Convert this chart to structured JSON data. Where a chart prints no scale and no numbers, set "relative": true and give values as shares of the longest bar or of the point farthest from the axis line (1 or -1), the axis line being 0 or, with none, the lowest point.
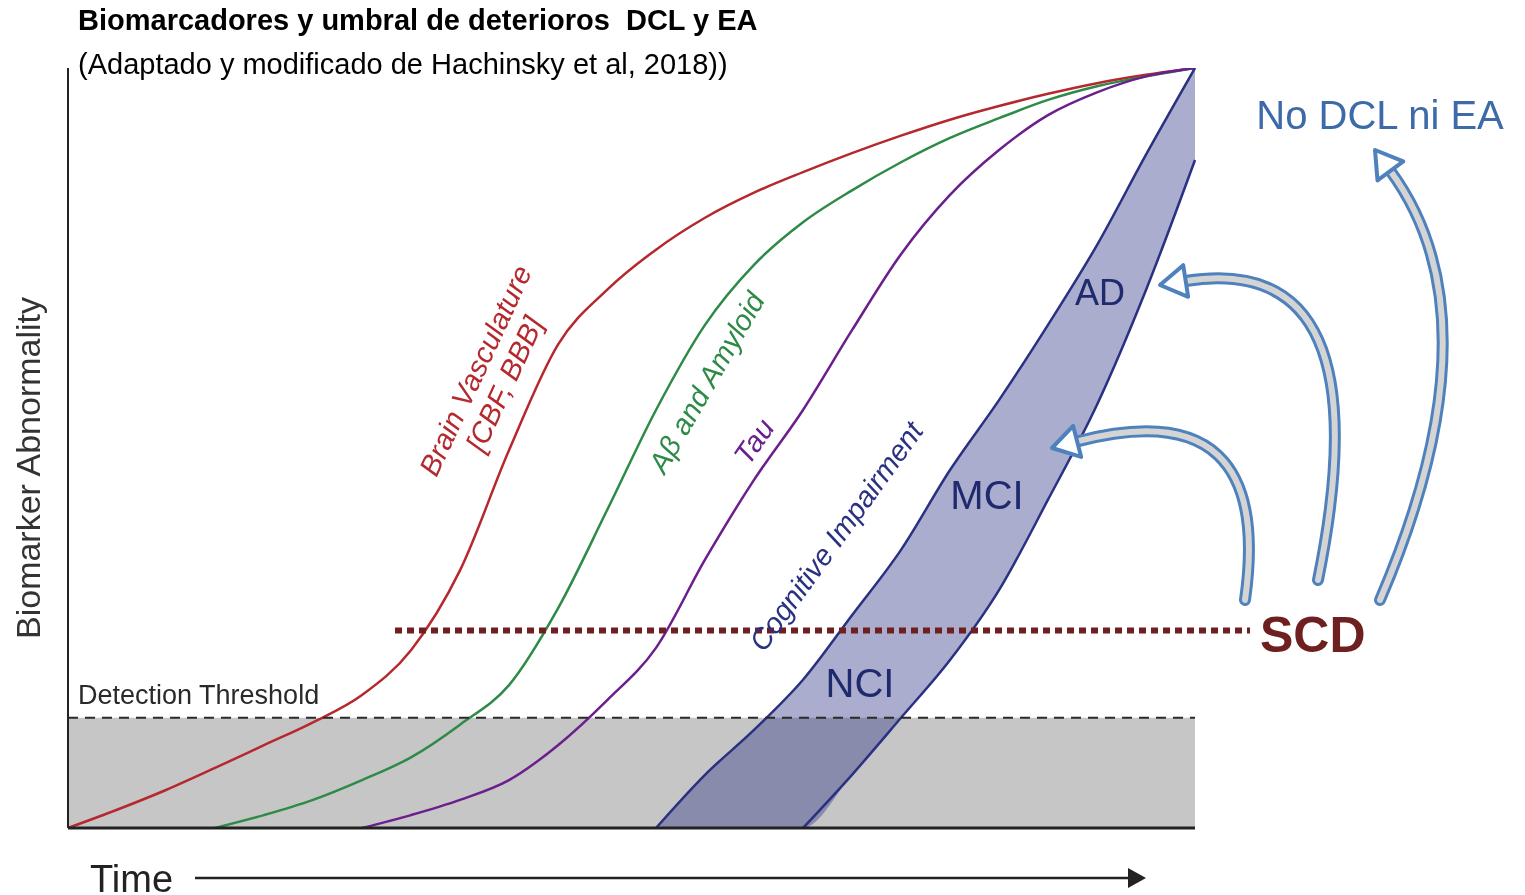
{
  "chart_data": {
    "type": "line",
    "relative": true,
    "title": "Biomarcadores y umbral de deterioros  DCL y EA",
    "subtitle": "(Adaptado y modificado de Hachinsky et al, 2018))",
    "xlabel": "Time",
    "ylabel": "Biomarker Abnormality",
    "categories": [
      null,
      null,
      null,
      null,
      null,
      null,
      null,
      null,
      null,
      null,
      null,
      null,
      null,
      null,
      null,
      null,
      null,
      null,
      null,
      null,
      null,
      null,
      null,
      null
    ],
    "series": [
      {
        "name": "Brain Vasculature [CBF, BBB]",
        "color": "#b5282e",
        "values": [
          0,
          0.024,
          0.05,
          0.079,
          0.109,
          0.139,
          0.175,
          0.234,
          0.339,
          0.497,
          0.636,
          0.708,
          0.761,
          0.803,
          0.836,
          0.863,
          0.888,
          0.911,
          0.932,
          0.95,
          0.966,
          0.98,
          0.991,
          1
        ]
      },
      {
        "name": "Aβ and Amyloid",
        "color": "#2e8a47",
        "values": [
          null,
          null,
          null,
          0,
          0.017,
          0.037,
          0.063,
          0.093,
          0.136,
          0.188,
          0.289,
          0.418,
          0.55,
          0.662,
          0.741,
          0.797,
          0.839,
          0.876,
          0.908,
          0.934,
          0.958,
          0.976,
          0.989,
          1
        ]
      },
      {
        "name": "Tau",
        "color": "#6a1f8c",
        "values": [
          null,
          null,
          null,
          null,
          null,
          null,
          0,
          0.017,
          0.037,
          0.063,
          0.109,
          0.168,
          0.237,
          0.353,
          0.458,
          0.55,
          0.655,
          0.755,
          0.833,
          0.892,
          0.938,
          0.968,
          0.989,
          1
        ]
      },
      {
        "name": "Cognitive Impairment",
        "color": "#2a3182",
        "values": [
          null,
          null,
          null,
          null,
          null,
          null,
          null,
          null,
          null,
          null,
          null,
          null,
          0,
          0.07,
          0.129,
          0.195,
          0.28,
          0.366,
          0.471,
          0.563,
          0.662,
          0.767,
          0.886,
          1
        ],
        "upper": [
          null,
          null,
          null,
          null,
          null,
          null,
          null,
          null,
          null,
          null,
          null,
          null,
          0,
          0.07,
          0.129,
          0.195,
          0.28,
          0.366,
          0.471,
          0.563,
          0.662,
          0.767,
          0.886,
          1
        ],
        "lower": [
          null,
          null,
          null,
          null,
          null,
          null,
          null,
          null,
          null,
          null,
          null,
          null,
          0,
          0,
          0,
          0,
          0.07,
          0.145,
          0.221,
          0.313,
          0.432,
          0.557,
          0.708,
          0.879
        ]
      },
      {
        "color": "#2a3182",
        "values": [
          null,
          null,
          null,
          null,
          null,
          null,
          null,
          null,
          null,
          null,
          null,
          null,
          null,
          null,
          null,
          0,
          0.07,
          0.145,
          0.221,
          0.313,
          0.432,
          0.557,
          0.708,
          0.879
        ]
      }
    ],
    "ref_lines": [
      {
        "axis": "y",
        "value": 0.145,
        "label": "Detection Threshold",
        "color": "#2a2a2a",
        "line_style": "dashed"
      },
      {
        "axis": "y",
        "value": 0.26,
        "label": "SCD",
        "color": "#6e1f1f",
        "line_style": "dotted"
      }
    ],
    "bands": [
      {
        "axis": "y",
        "from": 0,
        "to": 0.145,
        "color": "#c6c6c6"
      }
    ],
    "annotations": [
      "AD",
      "MCI",
      "NCI",
      "No DCL ni EA"
    ]
  }
}
